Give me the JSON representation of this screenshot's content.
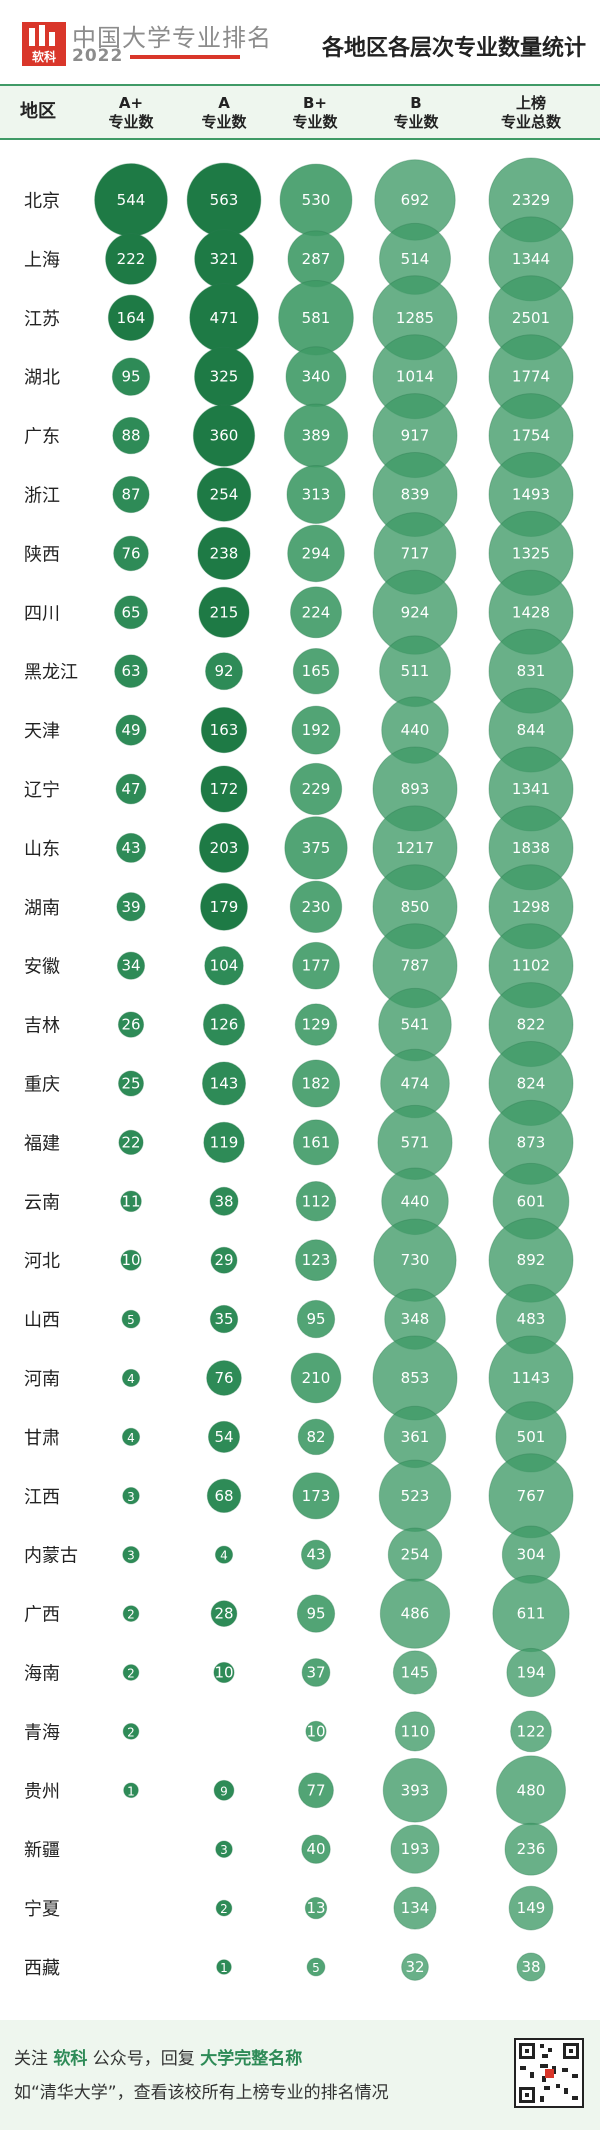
{
  "header": {
    "brand_name": "中国大学专业排名",
    "brand_year": "2022",
    "logo_text": "软科",
    "title": "各地区各层次专业数量统计"
  },
  "table_header": {
    "region": "地区",
    "columns": [
      "A+\n专业数",
      "A\n专业数",
      "B+\n专业数",
      "B\n专业数",
      "上榜\n专业总数"
    ]
  },
  "footer": {
    "line1_a": "关注 ",
    "line1_b": "软科",
    "line1_c": " 公众号，回复 ",
    "line1_d": "大学完整名称",
    "line2": "如“清华大学”，查看该校所有上榜专业的排名情况"
  },
  "colors": {
    "accent": "#3f9a66",
    "header_bg": "#eef6ee",
    "brand_red": "#d9362a"
  },
  "chart_data": {
    "type": "table",
    "title": "各地区各层次专业数量统计",
    "columns": [
      "A+专业数",
      "A专业数",
      "B+专业数",
      "B专业数",
      "上榜专业总数"
    ],
    "rows": [
      {
        "region": "北京",
        "values": [
          544,
          563,
          530,
          692,
          2329
        ]
      },
      {
        "region": "上海",
        "values": [
          222,
          321,
          287,
          514,
          1344
        ]
      },
      {
        "region": "江苏",
        "values": [
          164,
          471,
          581,
          1285,
          2501
        ]
      },
      {
        "region": "湖北",
        "values": [
          95,
          325,
          340,
          1014,
          1774
        ]
      },
      {
        "region": "广东",
        "values": [
          88,
          360,
          389,
          917,
          1754
        ]
      },
      {
        "region": "浙江",
        "values": [
          87,
          254,
          313,
          839,
          1493
        ]
      },
      {
        "region": "陕西",
        "values": [
          76,
          238,
          294,
          717,
          1325
        ]
      },
      {
        "region": "四川",
        "values": [
          65,
          215,
          224,
          924,
          1428
        ]
      },
      {
        "region": "黑龙江",
        "values": [
          63,
          92,
          165,
          511,
          831
        ]
      },
      {
        "region": "天津",
        "values": [
          49,
          163,
          192,
          440,
          844
        ]
      },
      {
        "region": "辽宁",
        "values": [
          47,
          172,
          229,
          893,
          1341
        ]
      },
      {
        "region": "山东",
        "values": [
          43,
          203,
          375,
          1217,
          1838
        ]
      },
      {
        "region": "湖南",
        "values": [
          39,
          179,
          230,
          850,
          1298
        ]
      },
      {
        "region": "安徽",
        "values": [
          34,
          104,
          177,
          787,
          1102
        ]
      },
      {
        "region": "吉林",
        "values": [
          26,
          126,
          129,
          541,
          822
        ]
      },
      {
        "region": "重庆",
        "values": [
          25,
          143,
          182,
          474,
          824
        ]
      },
      {
        "region": "福建",
        "values": [
          22,
          119,
          161,
          571,
          873
        ]
      },
      {
        "region": "云南",
        "values": [
          11,
          38,
          112,
          440,
          601
        ]
      },
      {
        "region": "河北",
        "values": [
          10,
          29,
          123,
          730,
          892
        ]
      },
      {
        "region": "山西",
        "values": [
          5,
          35,
          95,
          348,
          483
        ]
      },
      {
        "region": "河南",
        "values": [
          4,
          76,
          210,
          853,
          1143
        ]
      },
      {
        "region": "甘肃",
        "values": [
          4,
          54,
          82,
          361,
          501
        ]
      },
      {
        "region": "江西",
        "values": [
          3,
          68,
          173,
          523,
          767
        ]
      },
      {
        "region": "内蒙古",
        "values": [
          3,
          4,
          43,
          254,
          304
        ]
      },
      {
        "region": "广西",
        "values": [
          2,
          28,
          95,
          486,
          611
        ]
      },
      {
        "region": "海南",
        "values": [
          2,
          10,
          37,
          145,
          194
        ]
      },
      {
        "region": "青海",
        "values": [
          2,
          null,
          10,
          110,
          122
        ]
      },
      {
        "region": "贵州",
        "values": [
          1,
          9,
          77,
          393,
          480
        ]
      },
      {
        "region": "新疆",
        "values": [
          null,
          3,
          40,
          193,
          236
        ]
      },
      {
        "region": "宁夏",
        "values": [
          null,
          2,
          13,
          134,
          149
        ]
      },
      {
        "region": "西藏",
        "values": [
          null,
          1,
          5,
          32,
          38
        ]
      }
    ]
  }
}
